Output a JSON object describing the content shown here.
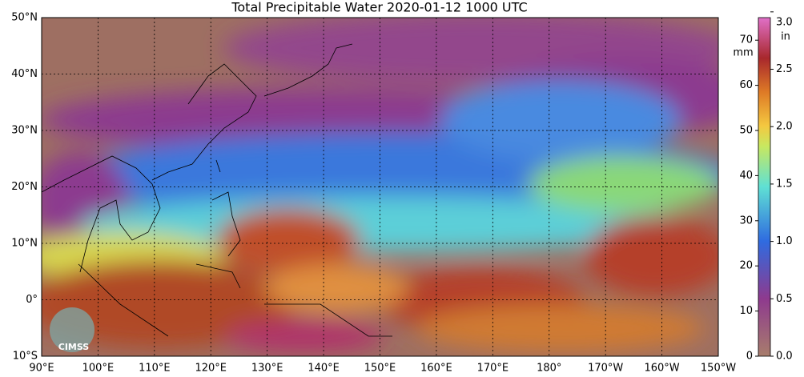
{
  "title": "Total Precipitable Water  2020-01-12 1000 UTC",
  "map": {
    "lon_labels": [
      "90°E",
      "100°E",
      "110°E",
      "120°E",
      "130°E",
      "140°E",
      "150°E",
      "160°E",
      "170°E",
      "180°",
      "170°W",
      "160°W",
      "150°W"
    ],
    "lat_labels": [
      "50°N",
      "40°N",
      "30°N",
      "20°N",
      "10°N",
      "0°",
      "10°S"
    ],
    "logo": "CIMSS"
  },
  "colorbar": {
    "mm_unit": "mm",
    "in_unit": "in",
    "mm_lim": [
      0,
      75
    ],
    "mm_ticks": [
      0,
      10,
      20,
      30,
      40,
      50,
      60,
      70
    ],
    "in_lim": [
      0,
      2.95
    ],
    "in_ticks": [
      {
        "value": 0,
        "label": "0.0"
      },
      {
        "value": 0.5,
        "label": "0.5"
      },
      {
        "value": 1,
        "label": "1.0"
      },
      {
        "value": 1.5,
        "label": "1.5"
      },
      {
        "value": 2,
        "label": "2.0"
      },
      {
        "value": 2.5,
        "label": "2.5"
      },
      {
        "value": 3,
        "label": "3.0"
      }
    ]
  }
}
